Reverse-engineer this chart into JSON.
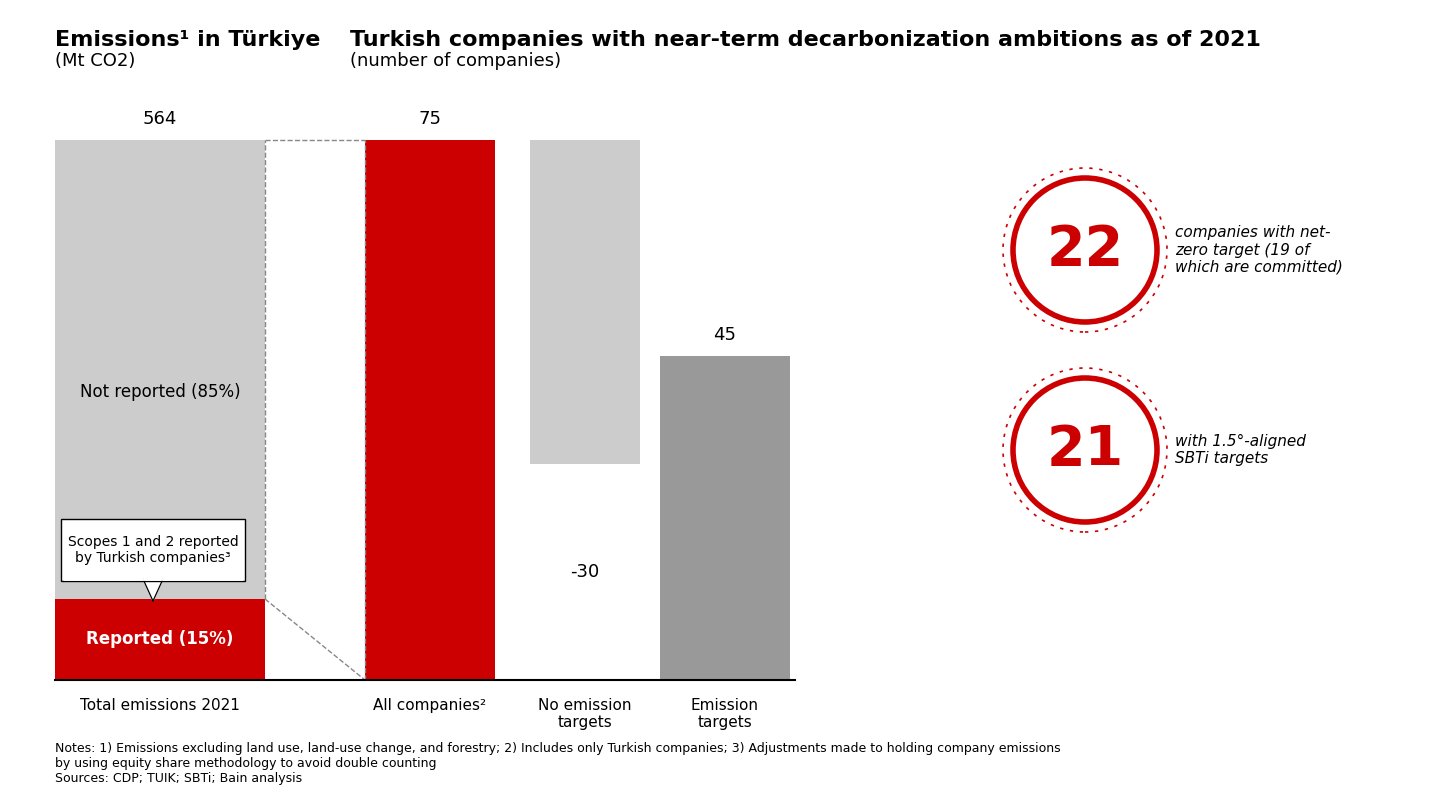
{
  "title_left": "Emissions¹ in Türkiye",
  "subtitle_left": "(Mt CO2)",
  "title_right": "Turkish companies with near-term decarbonization ambitions as of 2021",
  "subtitle_right": "(number of companies)",
  "bar1_label_total": "564",
  "bar1_label_reported": "Reported (15%)",
  "bar1_label_not_reported": "Not reported (85%)",
  "bar1_reported_pct": 0.15,
  "bar1_not_reported_pct": 0.85,
  "bar1_xlabel": "Total emissions 2021",
  "bar2_label": "75",
  "bar2_xlabel": "All companies²",
  "bar3_label": "-30",
  "bar3_xlabel": "No emission\ntargets",
  "bar4_label": "45",
  "bar4_xlabel": "Emission\ntargets",
  "color_red": "#CC0000",
  "color_gray_light": "#CCCCCC",
  "color_gray_mid": "#BBBBBB",
  "color_gray_dark": "#999999",
  "color_white": "#FFFFFF",
  "color_black": "#000000",
  "circle1_value": "22",
  "circle1_label": "companies with net-\nzero target (19 of\nwhich are committed)",
  "circle2_value": "21",
  "circle2_label": "with 1.5°-aligned\nSBTi targets",
  "callout_text": "Scopes 1 and 2 reported\nby Turkish companies³",
  "notes_text": "Notes: 1) Emissions excluding land use, land-use change, and forestry; 2) Includes only Turkish companies; 3) Adjustments made to holding company emissions\nby using equity share methodology to avoid double counting\nSources: CDP; TUIK; SBTi; Bain analysis",
  "background_color": "#FFFFFF"
}
